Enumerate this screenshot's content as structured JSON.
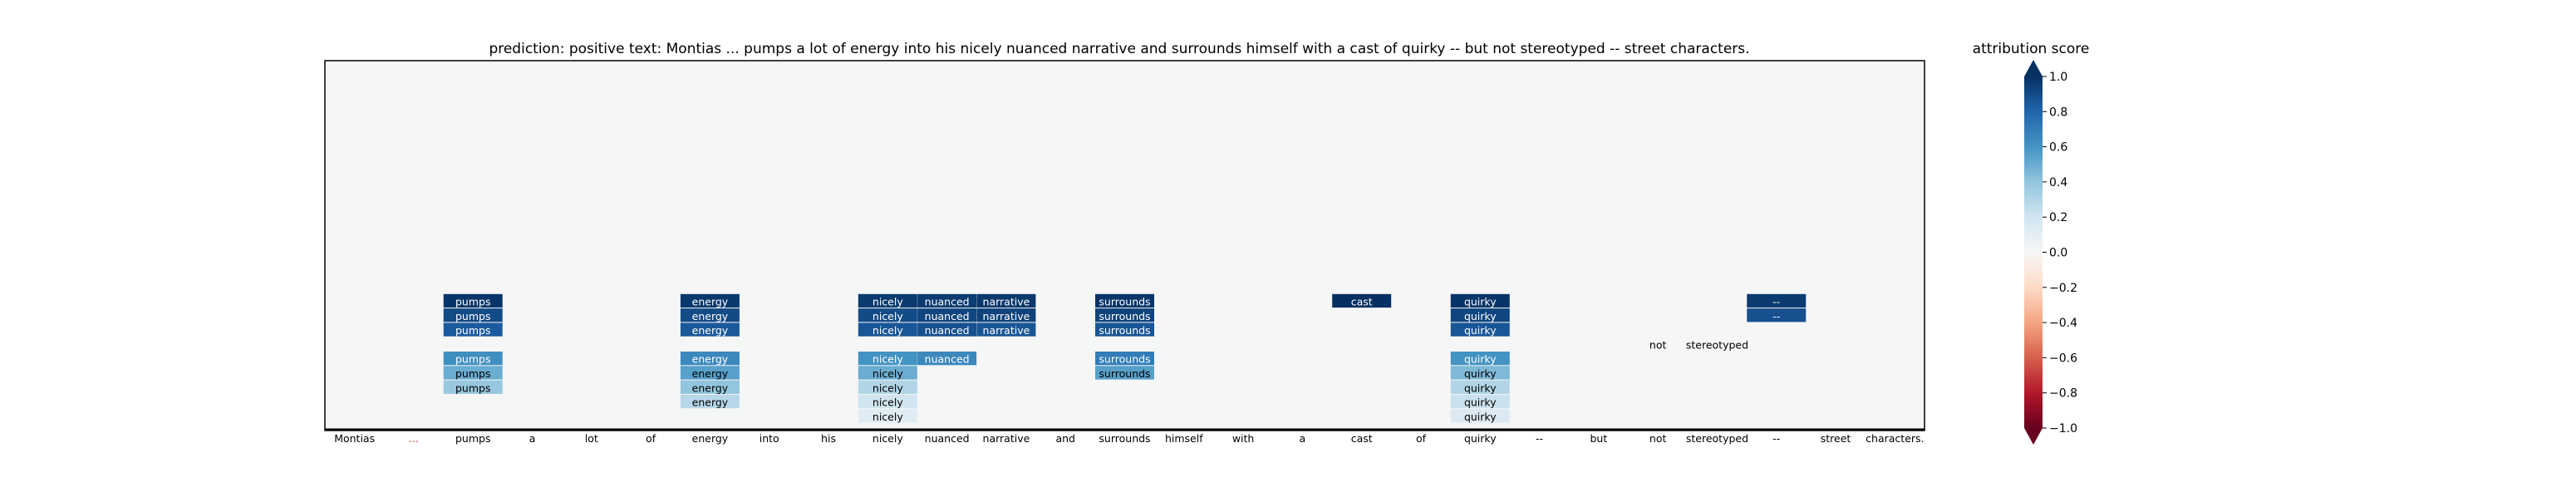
{
  "chart_data": {
    "type": "heatmap",
    "title": "prediction:  positive     text:  Montias ... pumps a lot of energy into his nicely nuanced narrative and surrounds himself with a cast of quirky -- but not stereotyped -- street characters.",
    "prediction_label": "positive",
    "tokens": [
      "Montias",
      "...",
      "pumps",
      "a",
      "lot",
      "of",
      "energy",
      "into",
      "his",
      "nicely",
      "nuanced",
      "narrative",
      "and",
      "surrounds",
      "himself",
      "with",
      "a",
      "cast",
      "of",
      "quirky",
      "--",
      "but",
      "not",
      "stereotyped",
      "--",
      "street",
      "characters."
    ],
    "token_display": [
      "Montias",
      "...",
      "pumps",
      "a",
      "lot",
      "of",
      "energy",
      "into",
      "his",
      "nicely",
      "nuanced",
      "narrative",
      "and",
      "surrounds",
      "himself",
      "with",
      "a",
      "cast",
      "of",
      "quirky",
      "--",
      "but",
      "not",
      "stereotyped",
      "--",
      "street",
      "characters."
    ],
    "rows": 25,
    "cells": [
      {
        "token": 2,
        "row": 16,
        "value": 0.98
      },
      {
        "token": 2,
        "row": 17,
        "value": 0.9
      },
      {
        "token": 2,
        "row": 18,
        "value": 0.84
      },
      {
        "token": 2,
        "row": 20,
        "value": 0.62
      },
      {
        "token": 2,
        "row": 21,
        "value": 0.5
      },
      {
        "token": 2,
        "row": 22,
        "value": 0.38
      },
      {
        "token": 6,
        "row": 16,
        "value": 0.97
      },
      {
        "token": 6,
        "row": 17,
        "value": 0.9
      },
      {
        "token": 6,
        "row": 18,
        "value": 0.85
      },
      {
        "token": 6,
        "row": 20,
        "value": 0.65
      },
      {
        "token": 6,
        "row": 21,
        "value": 0.55
      },
      {
        "token": 6,
        "row": 22,
        "value": 0.4
      },
      {
        "token": 6,
        "row": 23,
        "value": 0.28
      },
      {
        "token": 9,
        "row": 16,
        "value": 0.96
      },
      {
        "token": 9,
        "row": 17,
        "value": 0.9
      },
      {
        "token": 9,
        "row": 18,
        "value": 0.86
      },
      {
        "token": 9,
        "row": 20,
        "value": 0.6
      },
      {
        "token": 9,
        "row": 21,
        "value": 0.5
      },
      {
        "token": 9,
        "row": 22,
        "value": 0.3
      },
      {
        "token": 9,
        "row": 23,
        "value": 0.2
      },
      {
        "token": 9,
        "row": 24,
        "value": 0.12
      },
      {
        "token": 10,
        "row": 16,
        "value": 0.96
      },
      {
        "token": 10,
        "row": 17,
        "value": 0.92
      },
      {
        "token": 10,
        "row": 18,
        "value": 0.88
      },
      {
        "token": 10,
        "row": 20,
        "value": 0.65
      },
      {
        "token": 11,
        "row": 16,
        "value": 0.97
      },
      {
        "token": 11,
        "row": 17,
        "value": 0.93
      },
      {
        "token": 11,
        "row": 18,
        "value": 0.86
      },
      {
        "token": 13,
        "row": 16,
        "value": 0.98
      },
      {
        "token": 13,
        "row": 17,
        "value": 0.93
      },
      {
        "token": 13,
        "row": 18,
        "value": 0.86
      },
      {
        "token": 13,
        "row": 20,
        "value": 0.7
      },
      {
        "token": 13,
        "row": 21,
        "value": 0.55
      },
      {
        "token": 17,
        "row": 16,
        "value": 1.0
      },
      {
        "token": 19,
        "row": 16,
        "value": 0.98
      },
      {
        "token": 19,
        "row": 17,
        "value": 0.92
      },
      {
        "token": 19,
        "row": 18,
        "value": 0.86
      },
      {
        "token": 19,
        "row": 20,
        "value": 0.6
      },
      {
        "token": 19,
        "row": 21,
        "value": 0.45
      },
      {
        "token": 19,
        "row": 22,
        "value": 0.3
      },
      {
        "token": 19,
        "row": 23,
        "value": 0.22
      },
      {
        "token": 19,
        "row": 24,
        "value": 0.15
      },
      {
        "token": 22,
        "row": 19,
        "value": 0.0
      },
      {
        "token": 23,
        "row": 19,
        "value": 0.0
      },
      {
        "token": 24,
        "row": 16,
        "value": 0.96
      },
      {
        "token": 24,
        "row": 17,
        "value": 0.88
      }
    ],
    "colorbar": {
      "label": "attribution score",
      "range": [
        -1.0,
        1.0
      ],
      "colormap": "RdBu",
      "ticks": [
        -1.0,
        -0.8,
        -0.6,
        -0.4,
        -0.2,
        0.0,
        0.2,
        0.4,
        0.6,
        0.8,
        1.0
      ],
      "tick_labels": [
        "−1.0",
        "−0.8",
        "−0.6",
        "−0.4",
        "−0.2",
        "0.0",
        "0.2",
        "0.4",
        "0.6",
        "0.8",
        "1.0"
      ]
    },
    "colors": {
      "background": "#f5f6f6",
      "tick_label_first_color": "#000000",
      "tick_label_ellipsis_color": "#c0392b"
    }
  }
}
